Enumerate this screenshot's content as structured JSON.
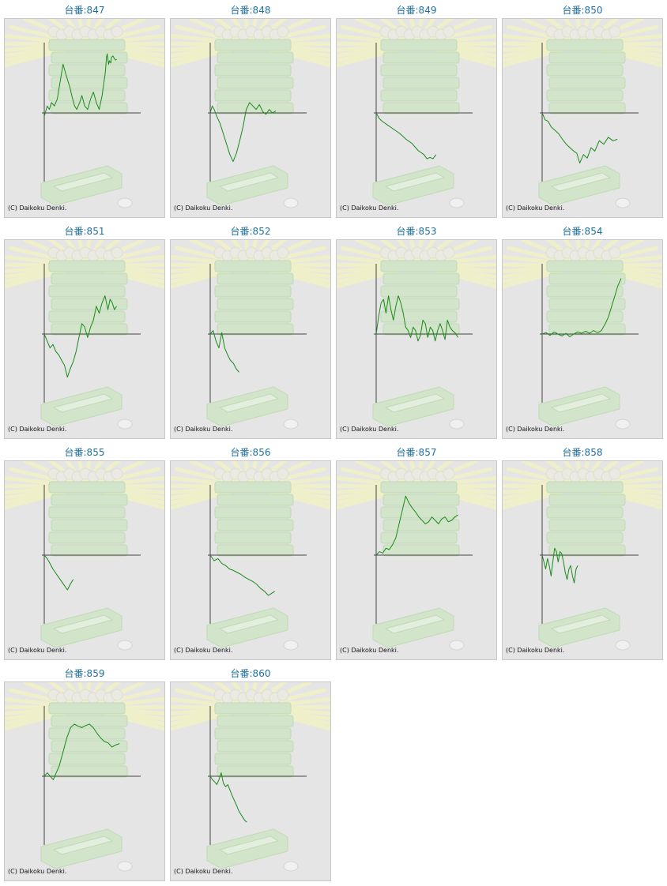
{
  "page": {
    "title_prefix": "台番:",
    "copyright": "(C) Daikoku Denki."
  },
  "colors": {
    "line": "#1a8a1a",
    "axis": "#444444",
    "title": "#1f6f9f",
    "panel_bg": "#e5e5e5",
    "panel_border": "#c8c8c8",
    "watermark_green": "#cfe6c6",
    "watermark_rays": "#f1f1c6"
  },
  "watermark": {
    "icon": "pachislot-machine-watermark"
  },
  "chart_data": [
    {
      "type": "line",
      "title": "台番:847",
      "ylim": [
        -1,
        1
      ],
      "x": [
        0,
        0.04,
        0.07,
        0.1,
        0.14,
        0.18,
        0.22,
        0.26,
        0.3,
        0.33,
        0.36,
        0.38,
        0.42,
        0.45,
        0.49,
        0.52,
        0.56,
        0.6,
        0.64,
        0.68,
        0.72,
        0.76,
        0.8,
        0.82,
        0.84,
        0.85,
        0.86,
        0.87,
        0.89,
        0.9,
        0.92,
        0.93,
        0.95,
        0.97,
        0.99,
        1
      ],
      "y": [
        -0.05,
        0.1,
        0.05,
        0.15,
        0.1,
        0.2,
        0.45,
        0.7,
        0.55,
        0.45,
        0.35,
        0.25,
        0.1,
        0.05,
        0.15,
        0.25,
        0.1,
        0.05,
        0.2,
        0.3,
        0.15,
        0.05,
        0.25,
        0.4,
        0.55,
        0.65,
        0.8,
        0.85,
        0.7,
        0.75,
        0.72,
        0.8,
        0.82,
        0.78,
        0.76,
        0.77
      ]
    },
    {
      "type": "line",
      "title": "台番:848",
      "ylim": [
        -1,
        1
      ],
      "x": [
        0,
        0.03,
        0.06,
        0.1,
        0.15,
        0.2,
        0.25,
        0.3,
        0.35,
        0.4,
        0.45,
        0.5,
        0.55,
        0.6,
        0.65,
        0.7,
        0.75,
        0.8,
        0.85,
        0.9,
        0.95,
        1
      ],
      "y": [
        0,
        0.1,
        0.05,
        -0.05,
        -0.15,
        -0.3,
        -0.45,
        -0.6,
        -0.7,
        -0.58,
        -0.4,
        -0.2,
        0.05,
        0.15,
        0.1,
        0.05,
        0.12,
        0.02,
        -0.02,
        0.05,
        0,
        0.03
      ]
    },
    {
      "type": "line",
      "title": "台番:849",
      "ylim": [
        -1,
        1
      ],
      "x": [
        0,
        0.05,
        0.1,
        0.2,
        0.3,
        0.4,
        0.5,
        0.6,
        0.7,
        0.8,
        0.85,
        0.9,
        0.95,
        1
      ],
      "y": [
        0,
        -0.08,
        -0.12,
        -0.18,
        -0.24,
        -0.3,
        -0.38,
        -0.44,
        -0.54,
        -0.6,
        -0.66,
        -0.64,
        -0.66,
        -0.6
      ]
    },
    {
      "type": "line",
      "title": "台番:850",
      "ylim": [
        -1,
        1
      ],
      "x": [
        0,
        0.04,
        0.08,
        0.12,
        0.17,
        0.22,
        0.27,
        0.32,
        0.37,
        0.42,
        0.46,
        0.5,
        0.55,
        0.6,
        0.65,
        0.7,
        0.76,
        0.82,
        0.88,
        0.94,
        1
      ],
      "y": [
        0,
        -0.1,
        -0.12,
        -0.2,
        -0.25,
        -0.3,
        -0.38,
        -0.45,
        -0.5,
        -0.55,
        -0.58,
        -0.72,
        -0.6,
        -0.65,
        -0.5,
        -0.55,
        -0.4,
        -0.45,
        -0.35,
        -0.4,
        -0.38
      ]
    },
    {
      "type": "line",
      "title": "台番:851",
      "ylim": [
        -1,
        1
      ],
      "x": [
        0,
        0.04,
        0.08,
        0.12,
        0.16,
        0.2,
        0.24,
        0.28,
        0.32,
        0.36,
        0.4,
        0.44,
        0.48,
        0.52,
        0.56,
        0.6,
        0.64,
        0.68,
        0.72,
        0.76,
        0.8,
        0.84,
        0.88,
        0.91,
        0.94,
        0.97,
        1
      ],
      "y": [
        0,
        -0.1,
        -0.2,
        -0.15,
        -0.25,
        -0.3,
        -0.38,
        -0.45,
        -0.62,
        -0.5,
        -0.4,
        -0.25,
        -0.05,
        0.15,
        0.1,
        -0.05,
        0.1,
        0.2,
        0.4,
        0.3,
        0.45,
        0.55,
        0.35,
        0.5,
        0.45,
        0.35,
        0.4
      ]
    },
    {
      "type": "line",
      "title": "台番:852",
      "ylim": [
        -1,
        1
      ],
      "x": [
        0,
        0.1,
        0.2,
        0.3,
        0.4,
        0.5,
        0.6,
        0.7,
        0.8,
        0.9,
        1
      ],
      "y": [
        0,
        0.05,
        -0.1,
        -0.2,
        0.02,
        -0.2,
        -0.3,
        -0.38,
        -0.42,
        -0.5,
        -0.55
      ]
    },
    {
      "type": "line",
      "title": "台番:853",
      "ylim": [
        -1,
        1
      ],
      "x": [
        0,
        0.03,
        0.06,
        0.09,
        0.12,
        0.15,
        0.18,
        0.21,
        0.24,
        0.27,
        0.3,
        0.33,
        0.36,
        0.39,
        0.42,
        0.45,
        0.48,
        0.51,
        0.54,
        0.57,
        0.6,
        0.63,
        0.66,
        0.69,
        0.72,
        0.75,
        0.78,
        0.81,
        0.84,
        0.87,
        0.9,
        0.93,
        0.96,
        1
      ],
      "y": [
        0,
        0.25,
        0.45,
        0.5,
        0.3,
        0.55,
        0.35,
        0.2,
        0.4,
        0.55,
        0.45,
        0.3,
        0.1,
        0.05,
        -0.05,
        0.1,
        0.05,
        -0.1,
        -0.02,
        0.2,
        0.15,
        -0.05,
        0.1,
        0.05,
        -0.1,
        0.05,
        0.15,
        0.05,
        -0.08,
        0.2,
        0.1,
        0.05,
        0.02,
        -0.05
      ]
    },
    {
      "type": "line",
      "title": "台番:854",
      "ylim": [
        -1,
        1
      ],
      "x": [
        0,
        0.05,
        0.1,
        0.15,
        0.2,
        0.25,
        0.3,
        0.35,
        0.4,
        0.45,
        0.5,
        0.55,
        0.6,
        0.65,
        0.7,
        0.72,
        0.75,
        0.8,
        0.84,
        0.88,
        0.92,
        0.96,
        1
      ],
      "y": [
        0,
        0.02,
        -0.02,
        0.03,
        0,
        -0.03,
        0.01,
        -0.04,
        0,
        0.03,
        0.01,
        0.04,
        0.01,
        0.05,
        0.02,
        0.03,
        0.05,
        0.15,
        0.25,
        0.4,
        0.55,
        0.7,
        0.8
      ]
    },
    {
      "type": "line",
      "title": "台番:855",
      "ylim": [
        -1,
        1
      ],
      "x": [
        0,
        0.1,
        0.2,
        0.3,
        0.4,
        0.5,
        0.6,
        0.7,
        0.8,
        0.9,
        1
      ],
      "y": [
        0,
        -0.05,
        -0.12,
        -0.2,
        -0.26,
        -0.32,
        -0.38,
        -0.44,
        -0.5,
        -0.42,
        -0.35
      ]
    },
    {
      "type": "line",
      "title": "台番:856",
      "ylim": [
        -1,
        1
      ],
      "x": [
        0,
        0.06,
        0.12,
        0.18,
        0.24,
        0.3,
        0.36,
        0.42,
        0.48,
        0.54,
        0.6,
        0.66,
        0.72,
        0.78,
        0.84,
        0.9,
        0.95,
        1
      ],
      "y": [
        0,
        -0.08,
        -0.05,
        -0.12,
        -0.15,
        -0.2,
        -0.22,
        -0.25,
        -0.28,
        -0.32,
        -0.35,
        -0.38,
        -0.42,
        -0.48,
        -0.52,
        -0.58,
        -0.55,
        -0.52
      ]
    },
    {
      "type": "line",
      "title": "台番:857",
      "ylim": [
        -1,
        1
      ],
      "x": [
        0,
        0.04,
        0.08,
        0.12,
        0.16,
        0.2,
        0.24,
        0.28,
        0.32,
        0.36,
        0.4,
        0.44,
        0.48,
        0.52,
        0.56,
        0.6,
        0.64,
        0.68,
        0.72,
        0.76,
        0.8,
        0.84,
        0.88,
        0.92,
        0.96,
        1
      ],
      "y": [
        0,
        0.05,
        0.03,
        0.1,
        0.08,
        0.15,
        0.25,
        0.45,
        0.65,
        0.85,
        0.75,
        0.68,
        0.62,
        0.55,
        0.5,
        0.45,
        0.48,
        0.55,
        0.5,
        0.45,
        0.52,
        0.55,
        0.48,
        0.5,
        0.55,
        0.58
      ]
    },
    {
      "type": "line",
      "title": "台番:858",
      "ylim": [
        -1,
        1
      ],
      "x": [
        0,
        0.05,
        0.1,
        0.15,
        0.2,
        0.25,
        0.3,
        0.35,
        0.4,
        0.45,
        0.5,
        0.55,
        0.6,
        0.65,
        0.7,
        0.75,
        0.8,
        0.85,
        0.9,
        0.95,
        1
      ],
      "y": [
        0,
        -0.1,
        -0.2,
        -0.05,
        -0.15,
        -0.3,
        -0.1,
        0.1,
        0.05,
        -0.1,
        0.05,
        0.02,
        -0.1,
        -0.25,
        -0.35,
        -0.2,
        -0.15,
        -0.3,
        -0.4,
        -0.2,
        -0.15
      ]
    },
    {
      "type": "line",
      "title": "台番:859",
      "ylim": [
        -1,
        1
      ],
      "x": [
        0,
        0.04,
        0.08,
        0.12,
        0.16,
        0.2,
        0.25,
        0.3,
        0.35,
        0.4,
        0.45,
        0.5,
        0.55,
        0.6,
        0.65,
        0.7,
        0.75,
        0.8,
        0.85,
        0.9,
        0.95,
        1
      ],
      "y": [
        0,
        0.05,
        0,
        -0.05,
        0.05,
        0.15,
        0.35,
        0.55,
        0.7,
        0.75,
        0.72,
        0.7,
        0.73,
        0.75,
        0.7,
        0.62,
        0.55,
        0.5,
        0.48,
        0.42,
        0.45,
        0.47
      ]
    },
    {
      "type": "line",
      "title": "台番:860",
      "ylim": [
        -1,
        1
      ],
      "x": [
        0,
        0.06,
        0.12,
        0.18,
        0.24,
        0.3,
        0.36,
        0.42,
        0.48,
        0.54,
        0.6,
        0.66,
        0.72,
        0.78,
        0.84,
        0.9,
        0.95,
        1
      ],
      "y": [
        0,
        -0.05,
        -0.08,
        -0.12,
        -0.05,
        0.05,
        -0.1,
        -0.15,
        -0.12,
        -0.2,
        -0.28,
        -0.35,
        -0.42,
        -0.5,
        -0.55,
        -0.6,
        -0.64,
        -0.66
      ]
    }
  ]
}
